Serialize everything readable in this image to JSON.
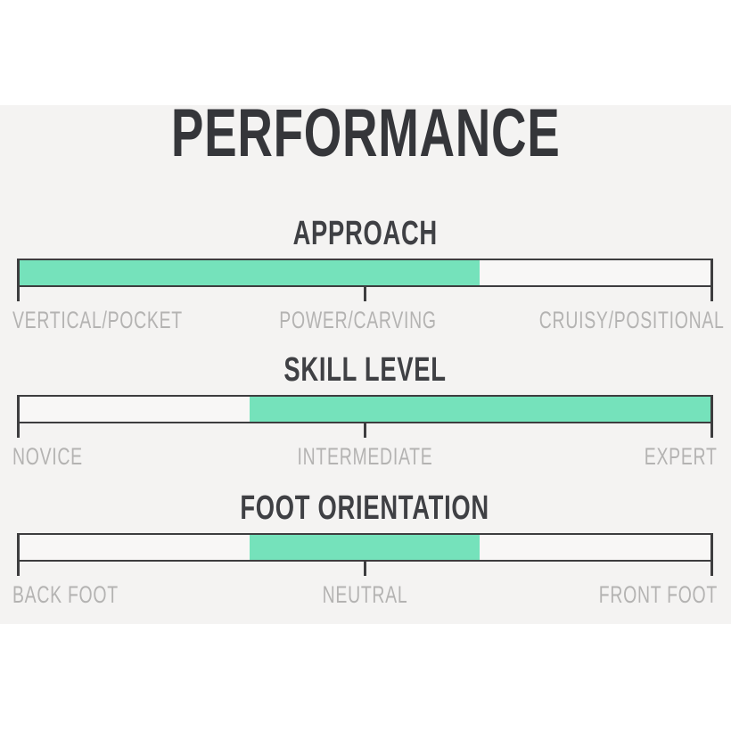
{
  "chart_data": {
    "type": "bar",
    "title": "PERFORMANCE",
    "accent_color": "#75e2bb",
    "line_color": "#3d3d3f",
    "panel_bg": "#f4f3f2",
    "label_color": "#b4b3b2",
    "layout": "three horizontal gauge bars, each with left/center/right scale labels",
    "gauges": [
      {
        "label": "APPROACH",
        "ticks": [
          "VERTICAL/POCKET",
          "POWER/CARVING",
          "CRUISY/POSITIONAL"
        ],
        "fill_start_pct": 0,
        "fill_end_pct": 66.5
      },
      {
        "label": "SKILL LEVEL",
        "ticks": [
          "NOVICE",
          "INTERMEDIATE",
          "EXPERT"
        ],
        "fill_start_pct": 33.3,
        "fill_end_pct": 100
      },
      {
        "label": "FOOT ORIENTATION",
        "ticks": [
          "BACK FOOT",
          "NEUTRAL",
          "FRONT FOOT"
        ],
        "fill_start_pct": 33.3,
        "fill_end_pct": 66.5
      }
    ]
  }
}
